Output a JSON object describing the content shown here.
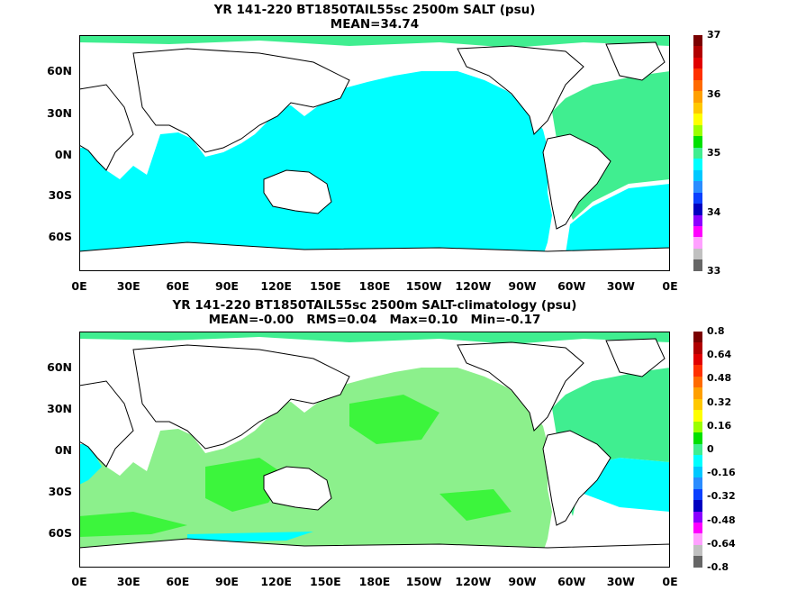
{
  "panels": [
    {
      "title_line1": "YR 141-220 BT1850TAIL55sc 2500m SALT (psu)",
      "title_line2": "MEAN=34.74",
      "colorbar": {
        "labels": [
          "37",
          "36",
          "35",
          "34",
          "33"
        ],
        "colors": [
          "#7a0000",
          "#b00000",
          "#e00000",
          "#ff3000",
          "#ff6a00",
          "#ff9f00",
          "#ffc800",
          "#ffff00",
          "#9bff00",
          "#00e000",
          "#40ee90",
          "#00ffff",
          "#00c8ff",
          "#2a8cff",
          "#0a40ff",
          "#0000c0",
          "#8a00ff",
          "#ff00ff",
          "#ffa0ff",
          "#c0c0c0",
          "#666666"
        ]
      }
    },
    {
      "title_line1": "YR 141-220 BT1850TAIL55sc 2500m SALT-climatology (psu)",
      "title_line2": "MEAN=-0.00   RMS=0.04   Max=0.10   Min=-0.17",
      "colorbar": {
        "labels": [
          "0.8",
          "0.64",
          "0.48",
          "0.32",
          "0.16",
          "0",
          "-0.16",
          "-0.32",
          "-0.48",
          "-0.64",
          "-0.8"
        ],
        "colors": [
          "#7a0000",
          "#b00000",
          "#e00000",
          "#ff3000",
          "#ff6a00",
          "#ff9f00",
          "#ffc800",
          "#ffff00",
          "#9bff00",
          "#00e000",
          "#40ee90",
          "#00ffff",
          "#00c8ff",
          "#2a8cff",
          "#0a40ff",
          "#0000c0",
          "#8a00ff",
          "#ff00ff",
          "#ffa0ff",
          "#c0c0c0",
          "#666666"
        ]
      }
    }
  ],
  "axes": {
    "lat_labels": [
      "60N",
      "30N",
      "0N",
      "30S",
      "60S"
    ],
    "lon_labels": [
      "0E",
      "30E",
      "60E",
      "90E",
      "120E",
      "150E",
      "180E",
      "150W",
      "120W",
      "90W",
      "60W",
      "30W",
      "0E"
    ]
  },
  "field_colors": {
    "cyan": "#00ffff",
    "seagreen": "#40ee90",
    "green": "#3cf53c",
    "lightgreen": "#8cf08c",
    "land": "#ffffff"
  }
}
